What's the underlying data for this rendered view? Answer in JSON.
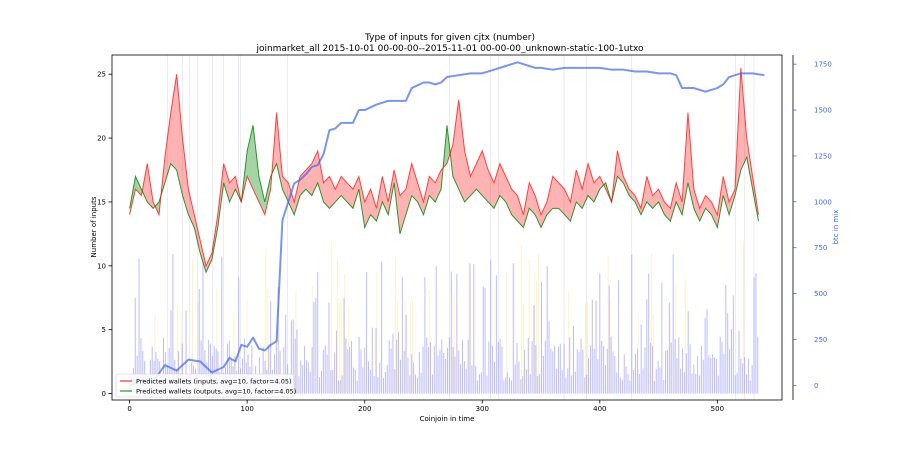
{
  "chart_data": {
    "type": "area",
    "title": "Type of inputs for given cjtx (number)",
    "subtitle": "joinmarket_all 2015-10-01 00-00-00--2015-11-01 00-00-00_unknown-static-100-1utxo",
    "xlabel": "Coinjoin in time",
    "ylabel": "Number of inputs",
    "y2label": "btc in mix",
    "xlim": [
      -15,
      555
    ],
    "ylim": [
      -0.5,
      26.5
    ],
    "y2lim": [
      -80,
      1800
    ],
    "xticks": [
      "0",
      "100",
      "200",
      "300",
      "400",
      "500"
    ],
    "yticks": [
      "0",
      "5",
      "10",
      "15",
      "20",
      "25"
    ],
    "y2ticks": [
      "0",
      "250",
      "500",
      "750",
      "1000",
      "1250",
      "1500",
      "1750"
    ],
    "legend_position": "lower-left",
    "series": [
      {
        "name": "Predicted wallets (inputs, avg=10, factor=4.05)",
        "color": "#ff0000",
        "x": [
          0,
          5,
          10,
          15,
          20,
          25,
          30,
          35,
          40,
          45,
          50,
          55,
          60,
          65,
          70,
          75,
          80,
          85,
          90,
          95,
          100,
          105,
          110,
          115,
          120,
          125,
          130,
          135,
          140,
          145,
          150,
          155,
          160,
          165,
          170,
          175,
          180,
          185,
          190,
          195,
          200,
          205,
          210,
          215,
          220,
          225,
          230,
          235,
          240,
          245,
          250,
          255,
          260,
          265,
          270,
          275,
          280,
          285,
          290,
          295,
          300,
          305,
          310,
          315,
          320,
          325,
          330,
          335,
          340,
          345,
          350,
          355,
          360,
          365,
          370,
          375,
          380,
          385,
          390,
          395,
          400,
          405,
          410,
          415,
          420,
          425,
          430,
          435,
          440,
          445,
          450,
          455,
          460,
          465,
          470,
          475,
          480,
          485,
          490,
          495,
          500,
          505,
          510,
          515,
          520,
          525,
          530,
          535
        ],
        "values": [
          14.0,
          16.0,
          15.5,
          18.0,
          15.0,
          14.0,
          18.5,
          22.0,
          25.0,
          20.0,
          16.0,
          14.0,
          12.0,
          10.0,
          11.0,
          14.0,
          18.0,
          16.5,
          17.0,
          15.0,
          17.0,
          16.0,
          15.0,
          14.0,
          16.0,
          22.0,
          17.0,
          16.5,
          15.0,
          17.0,
          17.5,
          18.0,
          19.0,
          16.5,
          17.0,
          16.0,
          17.0,
          16.5,
          16.0,
          17.0,
          15.0,
          16.0,
          14.5,
          17.0,
          15.0,
          17.5,
          15.5,
          16.0,
          18.0,
          16.5,
          15.0,
          17.0,
          16.5,
          17.5,
          18.0,
          19.5,
          23.0,
          19.0,
          17.0,
          18.0,
          19.0,
          17.5,
          16.5,
          18.0,
          17.0,
          16.0,
          15.5,
          14.0,
          16.5,
          15.5,
          14.0,
          15.0,
          17.0,
          16.5,
          16.0,
          15.0,
          17.5,
          16.0,
          18.0,
          16.5,
          17.0,
          16.0,
          15.0,
          19.0,
          17.0,
          16.0,
          15.5,
          14.5,
          17.0,
          15.5,
          16.0,
          15.0,
          14.5,
          16.5,
          15.0,
          22.0,
          16.0,
          14.5,
          15.5,
          15.0,
          14.0,
          17.0,
          15.0,
          16.0,
          25.5,
          20.0,
          17.0,
          14.0
        ]
      },
      {
        "name": "Predicted wallets (outputs, avg=10, factor=4.05)",
        "color": "#008000",
        "x": [
          0,
          5,
          10,
          15,
          20,
          25,
          30,
          35,
          40,
          45,
          50,
          55,
          60,
          65,
          70,
          75,
          80,
          85,
          90,
          95,
          100,
          105,
          110,
          115,
          120,
          125,
          130,
          135,
          140,
          145,
          150,
          155,
          160,
          165,
          170,
          175,
          180,
          185,
          190,
          195,
          200,
          205,
          210,
          215,
          220,
          225,
          230,
          235,
          240,
          245,
          250,
          255,
          260,
          265,
          270,
          275,
          280,
          285,
          290,
          295,
          300,
          305,
          310,
          315,
          320,
          325,
          330,
          335,
          340,
          345,
          350,
          355,
          360,
          365,
          370,
          375,
          380,
          385,
          390,
          395,
          400,
          405,
          410,
          415,
          420,
          425,
          430,
          435,
          440,
          445,
          450,
          455,
          460,
          465,
          470,
          475,
          480,
          485,
          490,
          495,
          500,
          505,
          510,
          515,
          520,
          525,
          530,
          535
        ],
        "values": [
          14.5,
          17.0,
          16.0,
          15.0,
          14.5,
          15.0,
          16.5,
          18.0,
          17.5,
          15.5,
          14.0,
          13.0,
          11.0,
          9.5,
          10.5,
          13.0,
          16.5,
          15.0,
          16.0,
          15.0,
          19.0,
          21.0,
          17.0,
          15.0,
          17.0,
          18.0,
          16.0,
          15.0,
          14.0,
          15.5,
          16.0,
          15.5,
          16.5,
          15.0,
          14.5,
          15.0,
          15.5,
          15.0,
          14.5,
          16.0,
          13.0,
          14.0,
          13.5,
          15.0,
          14.0,
          16.5,
          12.5,
          14.0,
          15.5,
          15.0,
          14.0,
          15.5,
          15.0,
          16.0,
          21.0,
          17.0,
          16.0,
          15.0,
          15.5,
          16.0,
          15.5,
          15.0,
          14.5,
          15.5,
          15.0,
          14.0,
          13.5,
          13.0,
          14.5,
          14.0,
          13.0,
          14.0,
          14.5,
          14.5,
          14.0,
          13.5,
          15.0,
          14.5,
          15.5,
          15.0,
          16.0,
          16.5,
          15.0,
          17.0,
          16.5,
          15.5,
          15.0,
          14.0,
          15.0,
          14.5,
          15.0,
          14.0,
          13.5,
          15.0,
          14.0,
          16.5,
          14.5,
          13.5,
          14.5,
          14.0,
          13.0,
          15.5,
          14.0,
          15.5,
          17.5,
          18.5,
          16.0,
          13.5
        ]
      },
      {
        "name": "btc in mix",
        "color": "#4169e1",
        "axis": "right",
        "x": [
          0,
          10,
          20,
          30,
          40,
          50,
          60,
          70,
          80,
          85,
          90,
          95,
          100,
          105,
          110,
          115,
          120,
          125,
          130,
          135,
          140,
          145,
          150,
          155,
          160,
          165,
          170,
          175,
          180,
          185,
          190,
          195,
          200,
          210,
          220,
          230,
          235,
          240,
          250,
          255,
          260,
          265,
          270,
          280,
          290,
          300,
          310,
          320,
          330,
          340,
          345,
          350,
          360,
          370,
          380,
          390,
          400,
          410,
          420,
          430,
          440,
          450,
          460,
          465,
          470,
          475,
          480,
          490,
          500,
          505,
          510,
          520,
          530,
          540
        ],
        "values": [
          0,
          30,
          20,
          110,
          80,
          140,
          130,
          70,
          100,
          150,
          130,
          220,
          210,
          260,
          200,
          190,
          220,
          240,
          900,
          1000,
          1100,
          1120,
          1150,
          1190,
          1200,
          1260,
          1390,
          1400,
          1430,
          1430,
          1430,
          1500,
          1500,
          1530,
          1550,
          1550,
          1550,
          1620,
          1650,
          1650,
          1640,
          1650,
          1680,
          1690,
          1700,
          1700,
          1720,
          1740,
          1760,
          1740,
          1730,
          1730,
          1720,
          1730,
          1730,
          1730,
          1730,
          1720,
          1720,
          1710,
          1710,
          1700,
          1700,
          1690,
          1620,
          1620,
          1620,
          1600,
          1620,
          1640,
          1680,
          1700,
          1700,
          1690
        ]
      }
    ]
  }
}
